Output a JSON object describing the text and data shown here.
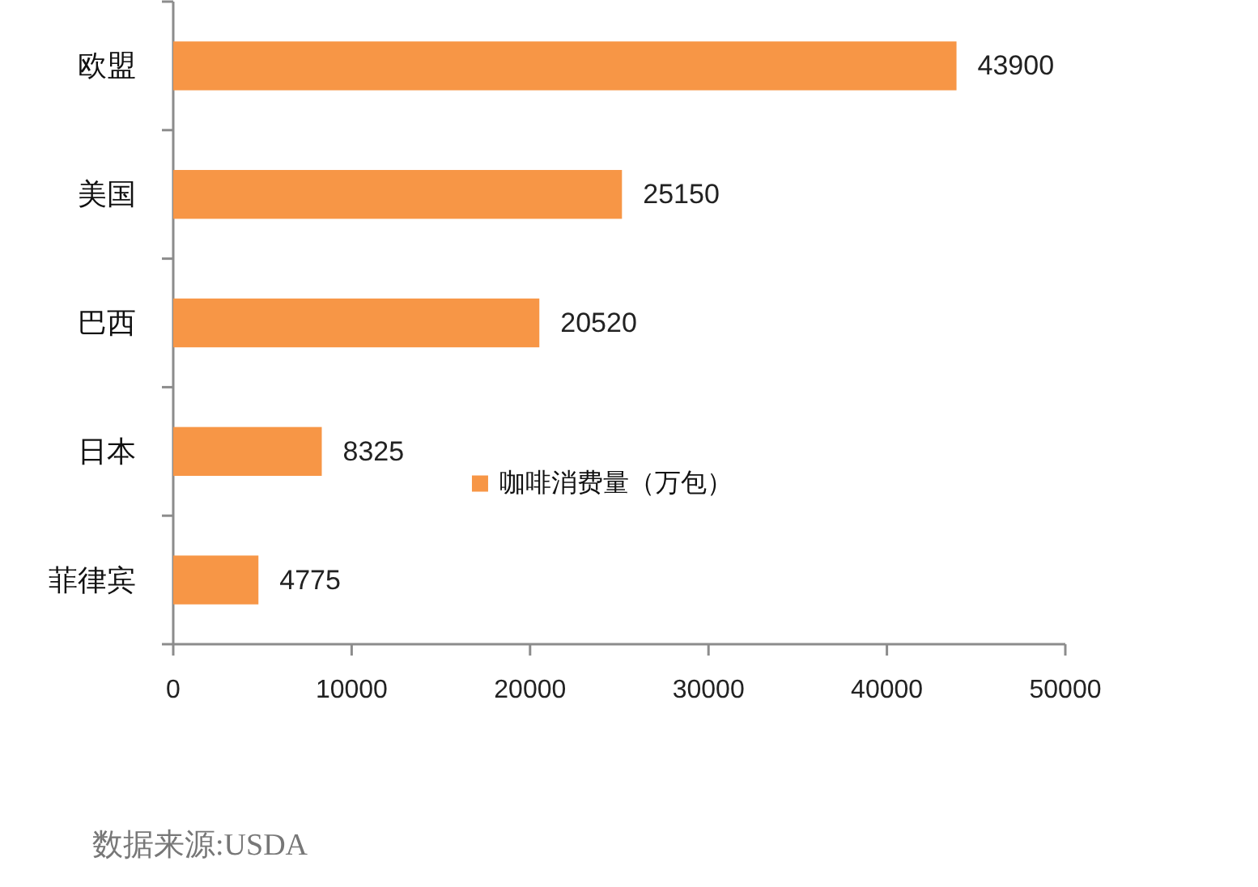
{
  "chart_data": {
    "type": "bar",
    "orientation": "horizontal",
    "categories": [
      "欧盟",
      "美国",
      "巴西",
      "日本",
      "菲律宾"
    ],
    "series": [
      {
        "name": "咖啡消费量（万包）",
        "color": "#f79646",
        "values": [
          43900,
          25150,
          20520,
          8325,
          4775
        ]
      }
    ],
    "xlim": [
      0,
      50000
    ],
    "xticks": [
      0,
      10000,
      20000,
      30000,
      40000,
      50000
    ],
    "data_labels": true,
    "legend": "bottom",
    "annotations": [
      "数据来源:USDA"
    ]
  }
}
